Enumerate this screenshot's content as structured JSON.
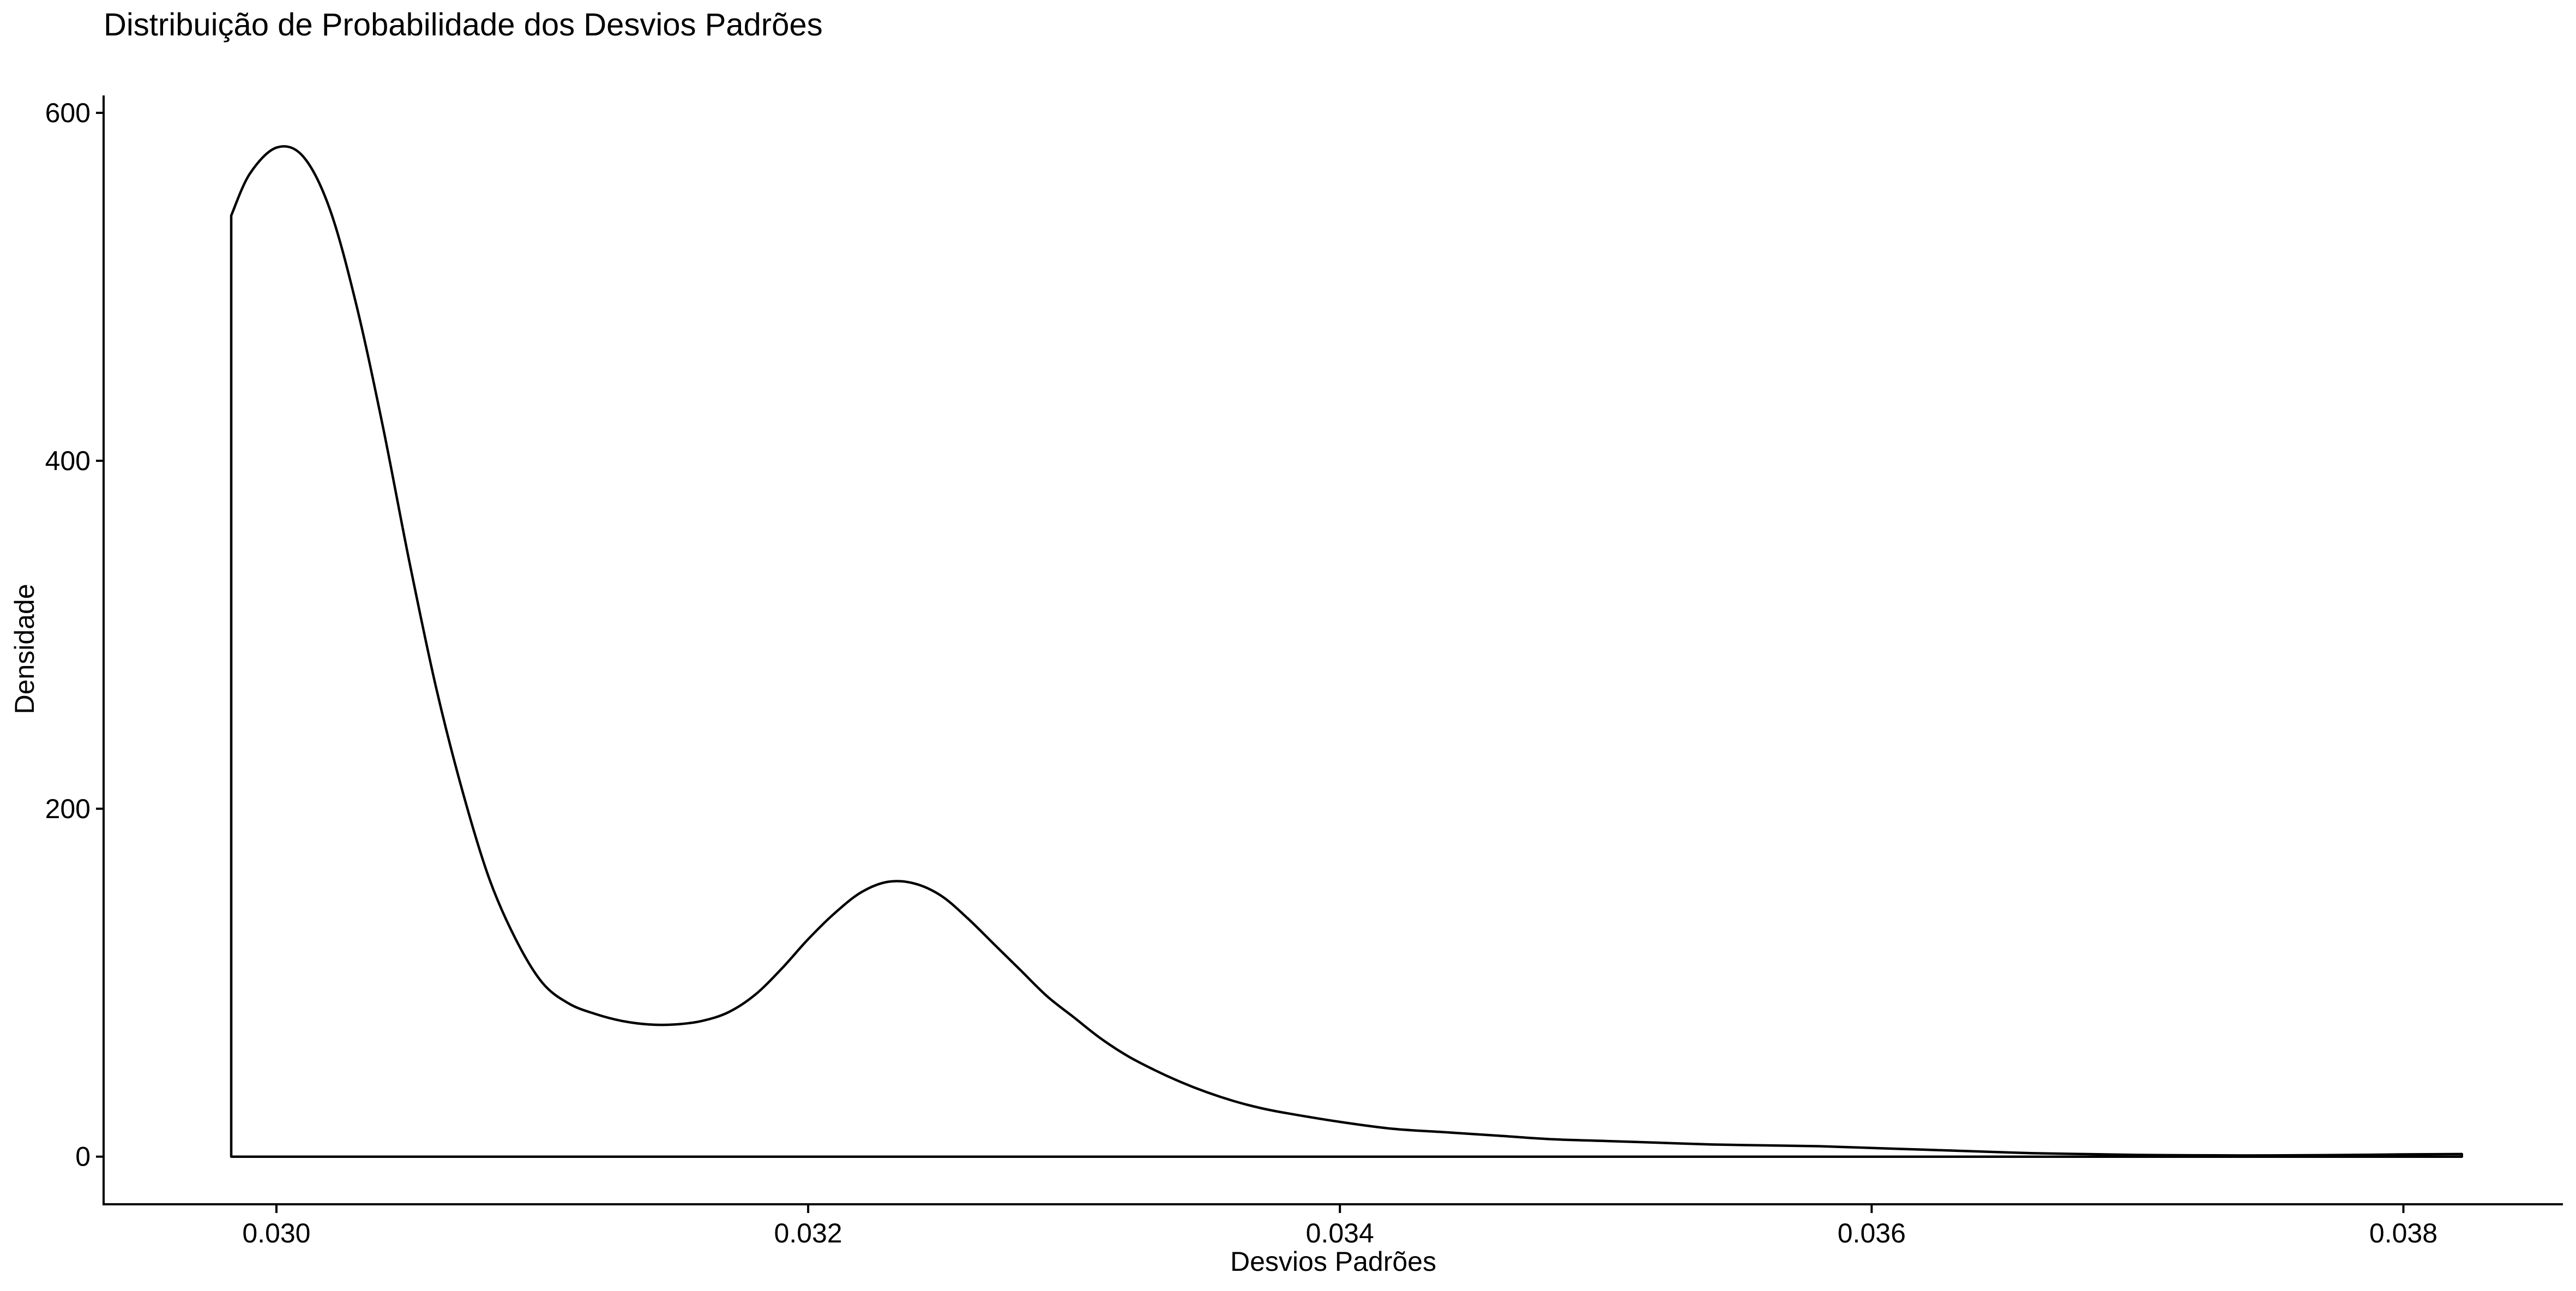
{
  "chart_data": {
    "type": "area",
    "title": "Distribuição de Probabilidade dos Desvios Padrões",
    "xlabel": "Desvios Padrões",
    "ylabel": "Densidade",
    "xlim": [
      0.02935,
      0.0386
    ],
    "ylim": [
      -28,
      610
    ],
    "x_ticks": [
      0.03,
      0.032,
      0.034,
      0.036,
      0.038
    ],
    "x_tick_labels": [
      "0.030",
      "0.032",
      "0.034",
      "0.036",
      "0.038"
    ],
    "y_ticks": [
      0,
      200,
      400,
      600
    ],
    "y_tick_labels": [
      "0",
      "200",
      "400",
      "600"
    ],
    "grid": false,
    "legend": "none",
    "fill": "none",
    "line_color": "#000000",
    "series": [
      {
        "x": [
          0.02983,
          0.0299,
          0.03,
          0.0301,
          0.0302,
          0.0303,
          0.0304,
          0.0305,
          0.0306,
          0.0307,
          0.0308,
          0.0309,
          0.031,
          0.0311,
          0.0312,
          0.0313,
          0.0314,
          0.0315,
          0.0316,
          0.0317,
          0.0318,
          0.0319,
          0.032,
          0.0321,
          0.0322,
          0.0323,
          0.0324,
          0.0325,
          0.0326,
          0.0327,
          0.0328,
          0.0329,
          0.033,
          0.0331,
          0.0332,
          0.0333,
          0.0334,
          0.0335,
          0.0336,
          0.0337,
          0.0338,
          0.034,
          0.0342,
          0.0344,
          0.0346,
          0.0348,
          0.035,
          0.0352,
          0.0354,
          0.0356,
          0.0358,
          0.036,
          0.0362,
          0.0364,
          0.0366,
          0.0368,
          0.037,
          0.0372,
          0.0374,
          0.0376,
          0.0378,
          0.038,
          0.03822
        ],
        "y": [
          541,
          565,
          580,
          575,
          545,
          490,
          420,
          342,
          270,
          210,
          160,
          125,
          100,
          88,
          82,
          78,
          76,
          76,
          78,
          83,
          93,
          108,
          125,
          140,
          152,
          158,
          157,
          150,
          137,
          122,
          107,
          92,
          80,
          68,
          58,
          50,
          43,
          37,
          32,
          28,
          25,
          20,
          16,
          14,
          12,
          10,
          9,
          8,
          7,
          6.5,
          6,
          5,
          4,
          3,
          2,
          1.5,
          1,
          0.8,
          0.7,
          0.8,
          1,
          1.3,
          1.5
        ]
      }
    ]
  }
}
